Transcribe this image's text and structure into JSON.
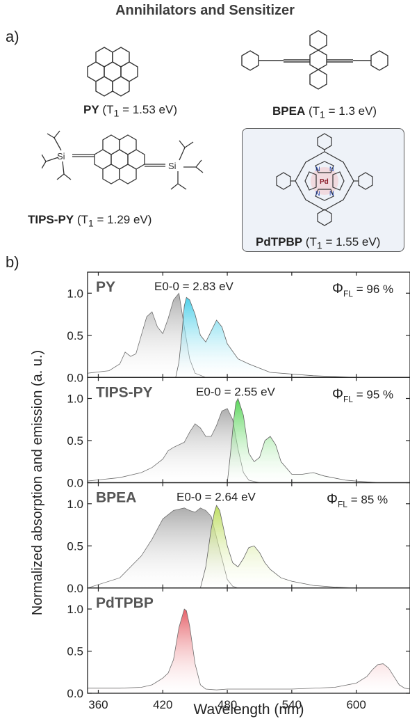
{
  "header": {
    "title": "Annihilators and Sensitizer"
  },
  "panel_labels": {
    "a": "a)",
    "b": "b)"
  },
  "molecules": [
    {
      "name": "PY",
      "t1_prefix": "(T",
      "t1_sub": "1",
      "t1_value": " = 1.53 eV)"
    },
    {
      "name": "BPEA",
      "t1_prefix": "(T",
      "t1_sub": "1",
      "t1_value": " = 1.3 eV)"
    },
    {
      "name": "TIPS-PY",
      "t1_prefix": "(T",
      "t1_sub": "1",
      "t1_value": " = 1.29 eV)"
    },
    {
      "name": "PdTPBP",
      "t1_prefix": "(T",
      "t1_sub": "1",
      "t1_value": " = 1.55 eV)"
    }
  ],
  "atom_labels": {
    "si": "Si",
    "n": "N",
    "pd": "Pd"
  },
  "colors": {
    "absorption": "#a9a9a9",
    "py": "#35c9e6",
    "tips_py": "#3fcf3f",
    "bpea": "#b5d94a",
    "pdtpbp": "#e4575f"
  },
  "chart_data": {
    "type": "area",
    "xlabel": "Wavelength (nm)",
    "ylabel": "Normalized absorption and emission  (a. u.)",
    "xlim": [
      350,
      650
    ],
    "xticks": [
      360,
      420,
      480,
      540,
      600
    ],
    "ylim": [
      0,
      1.25
    ],
    "yticks": [
      0.0,
      0.5,
      1.0
    ],
    "panels": [
      {
        "name": "PY",
        "e00": "E0-0 = 2.83 eV",
        "phi_symbol": "Φ",
        "phi_sub": "FL",
        "phi_value": " = 96 %",
        "absorption": {
          "x": [
            350,
            370,
            380,
            385,
            390,
            395,
            400,
            405,
            410,
            415,
            420,
            425,
            430,
            435,
            440,
            445,
            450,
            460
          ],
          "y": [
            0.05,
            0.08,
            0.16,
            0.3,
            0.25,
            0.28,
            0.5,
            0.72,
            0.78,
            0.6,
            0.52,
            0.7,
            0.92,
            1.0,
            0.6,
            0.22,
            0.05,
            0.0
          ]
        },
        "emission": {
          "x": [
            432,
            435,
            438,
            440,
            442,
            445,
            450,
            455,
            460,
            465,
            470,
            475,
            480,
            490,
            500,
            520,
            560,
            600
          ],
          "y": [
            0.0,
            0.18,
            0.55,
            0.85,
            0.95,
            0.92,
            0.75,
            0.5,
            0.42,
            0.55,
            0.68,
            0.6,
            0.4,
            0.22,
            0.16,
            0.06,
            0.02,
            0.0
          ]
        }
      },
      {
        "name": "TIPS-PY",
        "e00": "E0-0 = 2.55 eV",
        "phi_symbol": "Φ",
        "phi_sub": "FL",
        "phi_value": " = 95 %",
        "absorption": {
          "x": [
            350,
            380,
            400,
            410,
            420,
            425,
            430,
            440,
            445,
            450,
            455,
            460,
            465,
            470,
            475,
            480,
            485,
            490,
            495,
            500,
            510
          ],
          "y": [
            0.02,
            0.06,
            0.12,
            0.18,
            0.28,
            0.38,
            0.42,
            0.48,
            0.6,
            0.7,
            0.65,
            0.55,
            0.55,
            0.68,
            0.85,
            0.88,
            0.75,
            0.4,
            0.12,
            0.03,
            0.0
          ]
        },
        "emission": {
          "x": [
            480,
            483,
            486,
            488,
            490,
            495,
            500,
            505,
            510,
            515,
            520,
            525,
            530,
            540,
            550,
            560,
            570,
            590,
            620
          ],
          "y": [
            0.0,
            0.35,
            0.75,
            0.95,
            1.0,
            0.8,
            0.35,
            0.25,
            0.3,
            0.5,
            0.55,
            0.45,
            0.25,
            0.1,
            0.1,
            0.12,
            0.08,
            0.03,
            0.0
          ]
        }
      },
      {
        "name": "BPEA",
        "e00": "E0-0 = 2.64 eV",
        "phi_symbol": "Φ",
        "phi_sub": "FL",
        "phi_value": " = 85 %",
        "absorption": {
          "x": [
            350,
            380,
            400,
            410,
            420,
            430,
            440,
            445,
            450,
            455,
            460,
            465,
            470,
            475,
            480,
            485,
            490
          ],
          "y": [
            0.0,
            0.12,
            0.38,
            0.58,
            0.82,
            0.92,
            0.95,
            0.92,
            0.9,
            0.95,
            0.92,
            0.85,
            0.6,
            0.35,
            0.1,
            0.02,
            0.0
          ]
        },
        "emission": {
          "x": [
            455,
            460,
            465,
            468,
            470,
            473,
            475,
            480,
            485,
            490,
            495,
            500,
            505,
            510,
            515,
            520,
            530,
            540,
            560,
            580,
            600
          ],
          "y": [
            0.0,
            0.25,
            0.7,
            0.9,
            0.98,
            0.92,
            0.8,
            0.5,
            0.3,
            0.25,
            0.35,
            0.48,
            0.5,
            0.42,
            0.3,
            0.22,
            0.12,
            0.08,
            0.03,
            0.01,
            0.0
          ]
        }
      },
      {
        "name": "PdTPBP",
        "absorption": {
          "x": [
            350,
            380,
            400,
            410,
            415,
            420,
            425,
            430,
            435,
            440,
            442,
            445,
            450,
            455,
            460,
            470,
            480,
            500,
            540,
            580,
            600,
            610,
            615,
            620,
            625,
            630,
            635,
            640,
            645,
            650
          ],
          "y": [
            0.06,
            0.06,
            0.07,
            0.1,
            0.14,
            0.18,
            0.24,
            0.4,
            0.78,
            1.0,
            0.98,
            0.8,
            0.35,
            0.1,
            0.05,
            0.04,
            0.05,
            0.05,
            0.05,
            0.07,
            0.12,
            0.2,
            0.28,
            0.34,
            0.35,
            0.3,
            0.2,
            0.1,
            0.06,
            0.05
          ]
        }
      }
    ]
  }
}
